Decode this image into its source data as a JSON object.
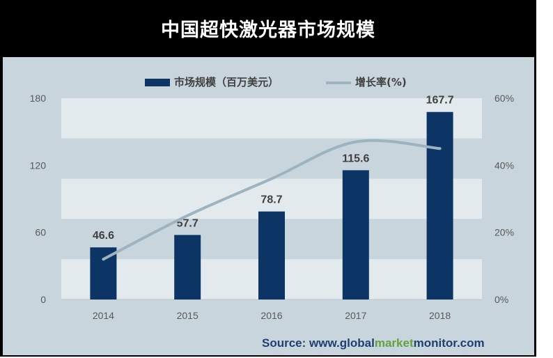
{
  "chart_data": {
    "type": "bar",
    "title": "中国超快激光器市场规模",
    "categories": [
      "2014",
      "2015",
      "2016",
      "2017",
      "2018"
    ],
    "series": [
      {
        "name": "市场规模（百万美元）",
        "type": "bar",
        "axis": "left",
        "values": [
          46.6,
          57.7,
          78.7,
          115.6,
          167.7
        ]
      },
      {
        "name": "增长率(%)",
        "type": "line",
        "axis": "right",
        "values": [
          12,
          25,
          36,
          47,
          45
        ]
      }
    ],
    "data_labels": [
      "46.6",
      "57.7",
      "78.7",
      "115.6",
      "167.7"
    ],
    "y_left": {
      "ticks": [
        "0",
        "60",
        "120",
        "180"
      ],
      "range": [
        0,
        180
      ]
    },
    "y_right": {
      "ticks": [
        "0%",
        "20%",
        "40%",
        "60%"
      ],
      "range": [
        0,
        60
      ]
    },
    "legend_position": "top",
    "grid": true,
    "colors": {
      "bar": "#0c3566",
      "line": "#9db4c0",
      "band_dark": "#c8d5dc",
      "band_light": "#e3eaed",
      "title_bg": "#000000"
    }
  },
  "source": {
    "prefix": "Source: www.",
    "part1": "global",
    "part2": "market",
    "part3": "monitor",
    "suffix": ".com"
  }
}
